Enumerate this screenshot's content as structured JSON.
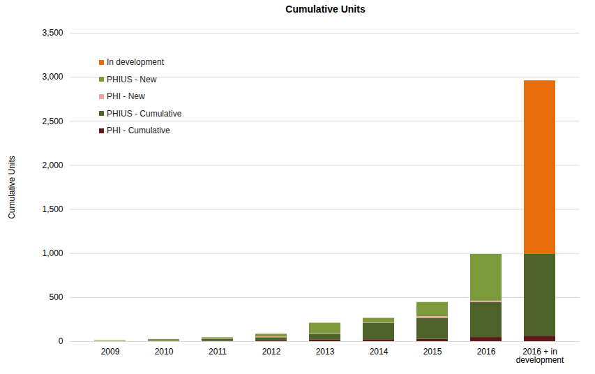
{
  "chart_data": {
    "type": "bar",
    "title": "Cumulative Units",
    "y_label": "Cumulative Units",
    "stacked": true,
    "grid": true,
    "legend": "top-left",
    "categories": [
      "2009",
      "2010",
      "2011",
      "2012",
      "2013",
      "2014",
      "2015",
      "2016",
      "2016 + in development"
    ],
    "series": [
      {
        "name": "PHI - Cumulative",
        "color": "#5e1a1a",
        "values": [
          0,
          2,
          4,
          7,
          17,
          22,
          27,
          47,
          62
        ]
      },
      {
        "name": "PHIUS - Cumulative",
        "color": "#4d6228",
        "values": [
          0,
          8,
          21,
          38,
          68,
          188,
          238,
          398,
          928
        ]
      },
      {
        "name": "PHI - New",
        "color": "#e8a6a4",
        "values": [
          2,
          2,
          3,
          10,
          5,
          5,
          20,
          15,
          0
        ]
      },
      {
        "name": "PHIUS - New",
        "color": "#7c9a3c",
        "values": [
          8,
          13,
          17,
          30,
          120,
          50,
          160,
          530,
          0
        ]
      },
      {
        "name": "In development",
        "color": "#e86c0a",
        "values": [
          0,
          0,
          0,
          0,
          0,
          0,
          0,
          0,
          1970
        ]
      }
    ],
    "ylim": [
      0,
      3500
    ],
    "yticks": [
      0,
      500,
      1000,
      1500,
      2000,
      2500,
      3000,
      3500
    ]
  }
}
